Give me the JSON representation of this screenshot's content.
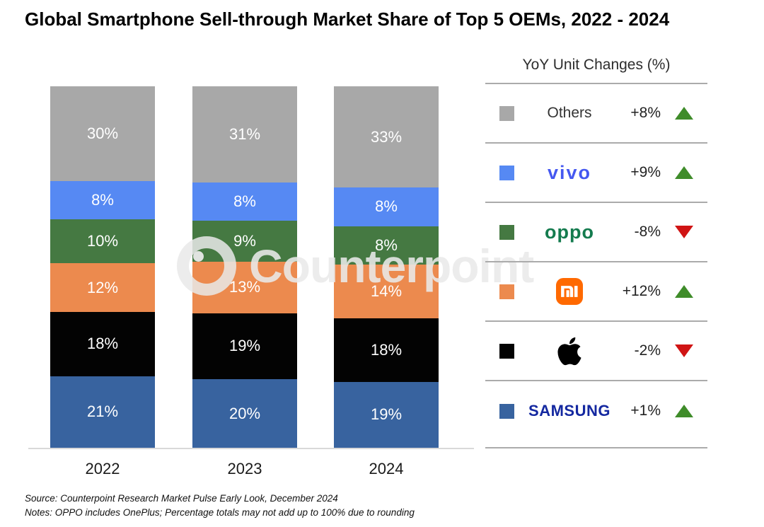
{
  "title": "Global Smartphone Sell-through Market Share of Top 5 OEMs, 2022 - 2024",
  "watermark": {
    "text": "Counterpoint"
  },
  "chart_data": {
    "type": "bar",
    "stacked": true,
    "title": "Global Smartphone Sell-through Market Share of Top 5 OEMs, 2022 - 2024",
    "categories": [
      "2022",
      "2023",
      "2024"
    ],
    "series": [
      {
        "name": "Others",
        "color": "#a8a8a8",
        "values": [
          30,
          31,
          33
        ]
      },
      {
        "name": "vivo",
        "color": "#5689f3",
        "values": [
          8,
          8,
          8
        ]
      },
      {
        "name": "OPPO",
        "color": "#457942",
        "values": [
          10,
          9,
          8
        ]
      },
      {
        "name": "Xiaomi",
        "color": "#ec8a4e",
        "values": [
          12,
          13,
          14
        ]
      },
      {
        "name": "Apple",
        "color": "#030303",
        "values": [
          18,
          19,
          18
        ]
      },
      {
        "name": "Samsung",
        "color": "#38639f",
        "values": [
          21,
          20,
          19
        ]
      }
    ],
    "value_suffix": "%",
    "ylim": [
      0,
      100
    ],
    "grid": false,
    "legend_position": "right",
    "bar_label_color": "#ffffff"
  },
  "legend": {
    "header": "YoY Unit Changes (%)",
    "rows": [
      {
        "brand": "Others",
        "logo_text": "Others",
        "swatch": "#a8a8a8",
        "change": "+8%",
        "direction": "up"
      },
      {
        "brand": "vivo",
        "logo_text": "vivo",
        "swatch": "#5689f3",
        "change": "+9%",
        "direction": "up"
      },
      {
        "brand": "OPPO",
        "logo_text": "oppo",
        "swatch": "#457942",
        "change": "-8%",
        "direction": "down"
      },
      {
        "brand": "Xiaomi",
        "logo_text": "mi",
        "swatch": "#ec8a4e",
        "change": "+12%",
        "direction": "up"
      },
      {
        "brand": "Apple",
        "logo_text": "apple",
        "swatch": "#030303",
        "change": "-2%",
        "direction": "down"
      },
      {
        "brand": "Samsung",
        "logo_text": "SAMSUNG",
        "swatch": "#38639f",
        "change": "+1%",
        "direction": "up"
      }
    ]
  },
  "footer": {
    "source": "Source: Counterpoint Research Market Pulse Early Look, December 2024",
    "notes": "Notes: OPPO includes OnePlus; Percentage totals may not add up to 100% due to rounding"
  },
  "colors": {
    "up_triangle": "#3f8c2a",
    "down_triangle": "#d01414",
    "vivo_wordmark": "#4558f0",
    "oppo_wordmark": "#147b4e",
    "samsung_wordmark": "#1428a0",
    "xiaomi_badge": "#ff6900",
    "axis_line": "#d9d9d9",
    "legend_divider": "#ababab"
  }
}
